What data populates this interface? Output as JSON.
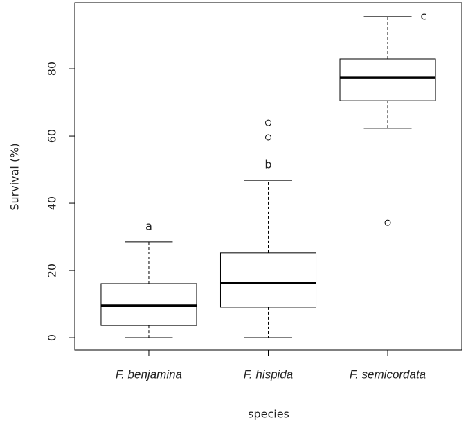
{
  "chart_data": {
    "type": "box",
    "x_label": "species",
    "y_label": "Survival (%)",
    "categories": [
      "F. benjamina",
      "F. hispida",
      "F. semicordata"
    ],
    "letters": [
      "a",
      "b",
      "c"
    ],
    "boxes": [
      {
        "whislo": 0,
        "q1": 3.7,
        "med": 9.5,
        "q3": 16.1,
        "whishi": 28.5,
        "outliers": []
      },
      {
        "whislo": 0,
        "q1": 9.1,
        "med": 16.3,
        "q3": 25.2,
        "whishi": 46.8,
        "outliers": [
          59.6,
          63.9
        ]
      },
      {
        "whislo": 62.3,
        "q1": 70.5,
        "med": 77.3,
        "q3": 82.9,
        "whishi": 95.5,
        "outliers": [
          34.2
        ]
      }
    ],
    "ylim": [
      -3.7,
      99.6
    ],
    "yticks": [
      0,
      20,
      40,
      60,
      80
    ]
  }
}
